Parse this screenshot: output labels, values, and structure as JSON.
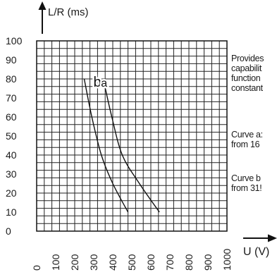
{
  "chart_data": {
    "type": "line",
    "ylabel": "L/R (ms)",
    "xlabel": "U (V)",
    "ylim": [
      0,
      100
    ],
    "xlim": [
      0,
      1000
    ],
    "yticks": [
      "0",
      "10",
      "20",
      "30",
      "40",
      "50",
      "60",
      "70",
      "80",
      "90",
      "100"
    ],
    "xticks": [
      "0",
      "100",
      "200",
      "300",
      "400",
      "500",
      "600",
      "700",
      "800",
      "900",
      "1000"
    ],
    "grid": true,
    "series": [
      {
        "name": "b",
        "x": [
          250,
          290,
          340,
          400,
          480
        ],
        "y": [
          80,
          60,
          40,
          25,
          10
        ]
      },
      {
        "name": "a",
        "x": [
          350,
          395,
          450,
          540,
          645
        ],
        "y": [
          80,
          60,
          40,
          25,
          10
        ]
      }
    ]
  },
  "side_text": {
    "para1": [
      "Provides",
      "capabilit",
      "function",
      "constant"
    ],
    "para2": [
      "Curve a:",
      "from 16"
    ],
    "para3": [
      "Curve b",
      "from 31!"
    ]
  }
}
